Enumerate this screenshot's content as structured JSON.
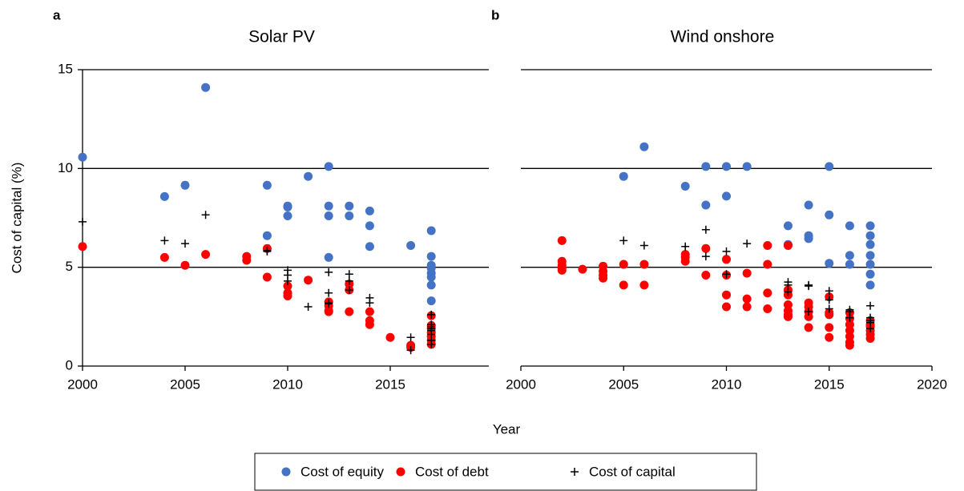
{
  "ylabel": "Cost of capital (%)",
  "xlabel": "Year",
  "legend": [
    {
      "name": "Cost of equity",
      "color": "#4472c4",
      "marker": "circle"
    },
    {
      "name": "Cost of debt",
      "color": "#ff0000",
      "marker": "circle"
    },
    {
      "name": "Cost of capital",
      "color": "#000000",
      "marker": "plus"
    }
  ],
  "chart_data": [
    {
      "type": "scatter",
      "panel": "a",
      "title": "Solar PV",
      "xlim": [
        2000,
        2020
      ],
      "xticks": [
        2000,
        2005,
        2010,
        2015
      ],
      "ylim": [
        0,
        15
      ],
      "yticks": [
        0,
        5,
        10,
        15
      ],
      "grid": true,
      "yaxis": true,
      "series": [
        {
          "color": "#4472c4",
          "marker": "circle",
          "x": [
            2000,
            2004,
            2005,
            2006,
            2009,
            2009,
            2010,
            2010,
            2010,
            2011,
            2012,
            2012,
            2012,
            2012,
            2013,
            2013,
            2014,
            2014,
            2014,
            2016,
            2017,
            2017,
            2017,
            2017,
            2017,
            2017,
            2017,
            2017
          ],
          "values": [
            10.57,
            8.58,
            9.15,
            14.1,
            9.15,
            6.6,
            8.1,
            8.05,
            7.6,
            9.6,
            10.1,
            8.1,
            7.6,
            5.5,
            8.1,
            7.6,
            7.85,
            7.1,
            6.05,
            6.1,
            6.85,
            5.55,
            5.1,
            4.95,
            4.7,
            4.5,
            4.1,
            3.3
          ]
        },
        {
          "color": "#ff0000",
          "marker": "circle",
          "x": [
            2000,
            2004,
            2005,
            2006,
            2008,
            2008,
            2009,
            2009,
            2010,
            2010,
            2010,
            2011,
            2012,
            2012,
            2012,
            2012,
            2013,
            2013,
            2013,
            2014,
            2014,
            2014,
            2015,
            2016,
            2016,
            2017,
            2017,
            2017,
            2017,
            2017,
            2017,
            2017
          ],
          "values": [
            6.05,
            5.5,
            5.1,
            5.65,
            5.55,
            5.35,
            5.95,
            4.5,
            4.05,
            3.7,
            3.55,
            4.35,
            3.25,
            3.05,
            2.8,
            2.75,
            4.15,
            3.85,
            2.75,
            2.75,
            2.3,
            2.1,
            1.45,
            1.05,
            0.95,
            2.55,
            2.05,
            1.9,
            1.7,
            1.5,
            1.3,
            1.1
          ]
        },
        {
          "color": "#000000",
          "marker": "plus",
          "x": [
            2000,
            2004,
            2005,
            2006,
            2009,
            2009,
            2010,
            2010,
            2010,
            2011,
            2012,
            2012,
            2012,
            2012,
            2013,
            2013,
            2013,
            2014,
            2014,
            2016,
            2016,
            2017,
            2017,
            2017,
            2017,
            2017,
            2017,
            2017,
            2017
          ],
          "values": [
            7.3,
            6.35,
            6.2,
            7.65,
            5.85,
            5.8,
            4.85,
            4.6,
            4.3,
            3.0,
            4.75,
            3.7,
            3.2,
            3.15,
            4.65,
            4.3,
            3.85,
            3.45,
            3.2,
            1.45,
            0.8,
            2.6,
            2.1,
            1.9,
            1.8,
            1.6,
            1.3,
            1.1,
            2.0
          ]
        }
      ]
    },
    {
      "type": "scatter",
      "panel": "b",
      "title": "Wind onshore",
      "xlim": [
        2000,
        2020
      ],
      "xticks": [
        2000,
        2005,
        2010,
        2015,
        2020
      ],
      "ylim": [
        0,
        15
      ],
      "yticks": [
        0,
        5,
        10,
        15
      ],
      "grid": true,
      "yaxis": false,
      "series": [
        {
          "color": "#4472c4",
          "marker": "circle",
          "x": [
            2005,
            2006,
            2008,
            2009,
            2009,
            2010,
            2010,
            2011,
            2013,
            2013,
            2014,
            2014,
            2014,
            2015,
            2015,
            2015,
            2016,
            2016,
            2016,
            2017,
            2017,
            2017,
            2017,
            2017,
            2017,
            2017
          ],
          "values": [
            9.6,
            11.1,
            9.1,
            10.1,
            8.15,
            10.1,
            8.6,
            10.1,
            7.1,
            6.15,
            8.15,
            6.6,
            6.45,
            10.1,
            7.65,
            5.2,
            7.1,
            5.6,
            5.15,
            7.1,
            6.6,
            6.15,
            5.6,
            5.15,
            4.65,
            4.1
          ]
        },
        {
          "color": "#ff0000",
          "marker": "circle",
          "x": [
            2002,
            2002,
            2002,
            2002,
            2002,
            2003,
            2004,
            2004,
            2004,
            2004,
            2005,
            2005,
            2006,
            2006,
            2008,
            2008,
            2008,
            2009,
            2009,
            2010,
            2010,
            2010,
            2010,
            2011,
            2011,
            2011,
            2012,
            2012,
            2012,
            2012,
            2013,
            2013,
            2013,
            2013,
            2013,
            2013,
            2013,
            2014,
            2014,
            2014,
            2014,
            2014,
            2015,
            2015,
            2015,
            2015,
            2015,
            2016,
            2016,
            2016,
            2016,
            2016,
            2016,
            2016,
            2017,
            2017,
            2017,
            2017,
            2017,
            2017
          ],
          "values": [
            6.35,
            5.3,
            5.1,
            4.95,
            4.85,
            4.9,
            5.05,
            4.8,
            4.6,
            4.45,
            5.15,
            4.1,
            5.15,
            4.1,
            5.65,
            5.5,
            5.3,
            5.95,
            4.6,
            5.4,
            4.6,
            3.6,
            3.0,
            4.7,
            3.4,
            3.0,
            6.1,
            5.15,
            3.7,
            2.9,
            6.1,
            3.85,
            3.6,
            3.1,
            2.8,
            2.6,
            2.5,
            3.2,
            3.0,
            2.75,
            2.5,
            1.95,
            3.5,
            2.7,
            2.6,
            1.95,
            1.45,
            2.7,
            2.4,
            2.1,
            1.8,
            1.5,
            1.2,
            1.05,
            2.3,
            2.1,
            2.0,
            1.8,
            1.6,
            1.4
          ]
        },
        {
          "color": "#000000",
          "marker": "plus",
          "x": [
            2005,
            2006,
            2008,
            2009,
            2009,
            2010,
            2010,
            2011,
            2013,
            2013,
            2013,
            2014,
            2014,
            2014,
            2015,
            2015,
            2015,
            2016,
            2016,
            2016,
            2017,
            2017,
            2017,
            2017,
            2017
          ],
          "values": [
            6.35,
            6.1,
            6.05,
            6.9,
            5.55,
            5.8,
            4.65,
            6.2,
            4.25,
            4.1,
            3.75,
            4.1,
            4.05,
            2.75,
            3.8,
            3.35,
            2.9,
            2.85,
            2.75,
            2.45,
            3.05,
            2.45,
            2.3,
            2.2,
            1.9
          ]
        }
      ]
    }
  ]
}
